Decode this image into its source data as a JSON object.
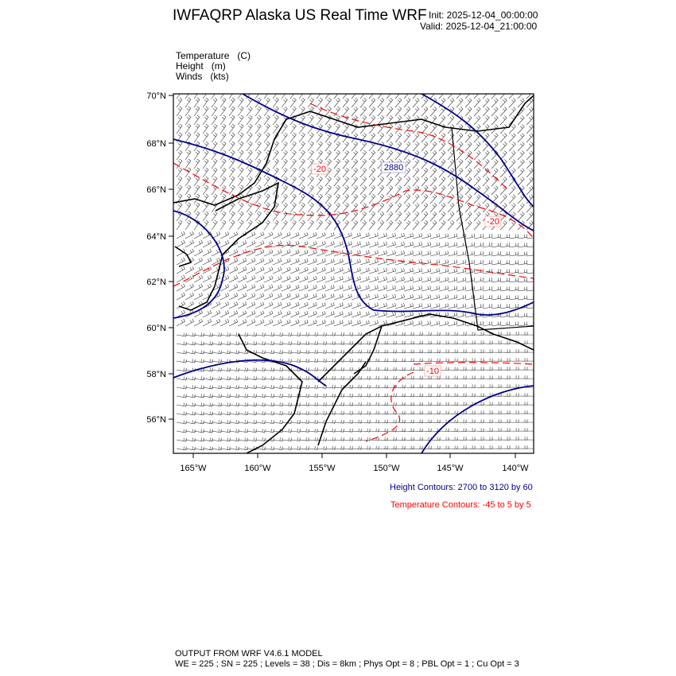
{
  "header": {
    "title": "IWFAQRP Alaska US Real Time WRF",
    "init": "Init: 2025-12-04_00:00:00",
    "valid": "Valid: 2025-12-04_21:00:00"
  },
  "fields": [
    {
      "name": "Temperature",
      "unit": "(C)"
    },
    {
      "name": "Height",
      "unit": "(m)"
    },
    {
      "name": "Winds",
      "unit": "(kts)"
    }
  ],
  "map": {
    "lat_ticks": [
      "70°N",
      "68°N",
      "66°N",
      "64°N",
      "62°N",
      "60°N",
      "58°N",
      "56°N"
    ],
    "lon_ticks": [
      "165°W",
      "160°W",
      "155°W",
      "150°W",
      "145°W",
      "140°W"
    ],
    "contour_labels": {
      "height": [
        "2880"
      ],
      "temperature": [
        "-20",
        "-20",
        "-10"
      ]
    },
    "colors": {
      "height": "#00008b",
      "temperature": "#ff0000",
      "coast": "#000000",
      "barbs": "#333333"
    }
  },
  "legend": {
    "height": "Height Contours: 2700 to 3120 by 60",
    "temperature": "Temperature Contours: -45 to 5 by 5"
  },
  "footer": {
    "line1": "OUTPUT FROM WRF V4.6.1 MODEL",
    "line2": "WE = 225 ; SN = 225 ; Levels = 38 ; Dis = 8km ; Phys Opt = 8 ; PBL Opt = 1 ; Cu Opt = 3"
  }
}
